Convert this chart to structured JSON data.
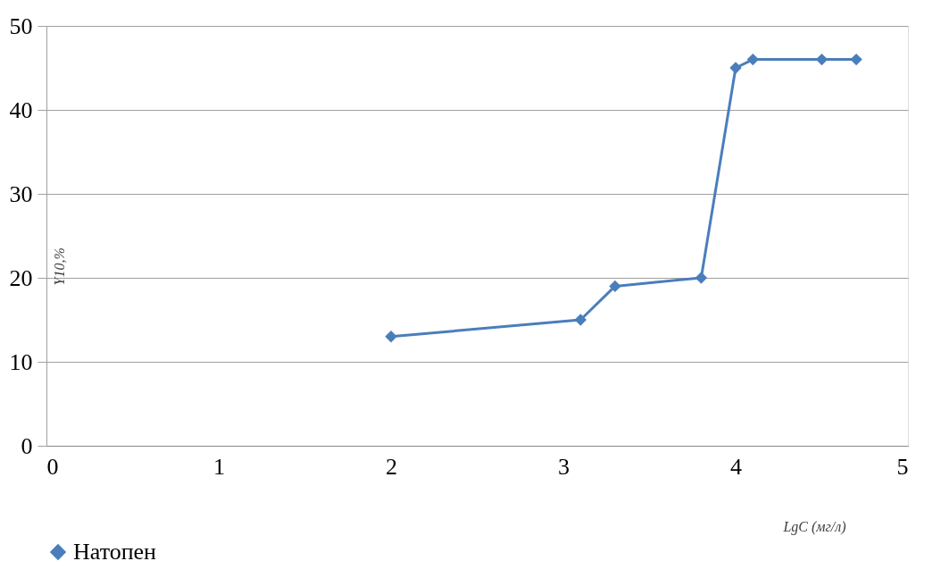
{
  "chart_data": {
    "type": "line",
    "xlabel": "LgC (мг/л)",
    "ylabel": "Y10,%",
    "x": [
      2,
      3.1,
      3.3,
      3.8,
      4.0,
      4.1,
      4.5,
      4.7
    ],
    "series": [
      {
        "name": "Натопен",
        "color": "#4a7ebb",
        "values": [
          13,
          15,
          19,
          20,
          45,
          46,
          46,
          46
        ]
      }
    ],
    "xlim": [
      0,
      5
    ],
    "xticks": [
      0,
      1,
      2,
      3,
      4,
      5
    ],
    "ylim": [
      0,
      50
    ],
    "yticks": [
      0,
      10,
      20,
      30,
      40,
      50
    ],
    "grid": "y",
    "legend": "bottom",
    "marker": "diamond",
    "line_style": "solid"
  }
}
